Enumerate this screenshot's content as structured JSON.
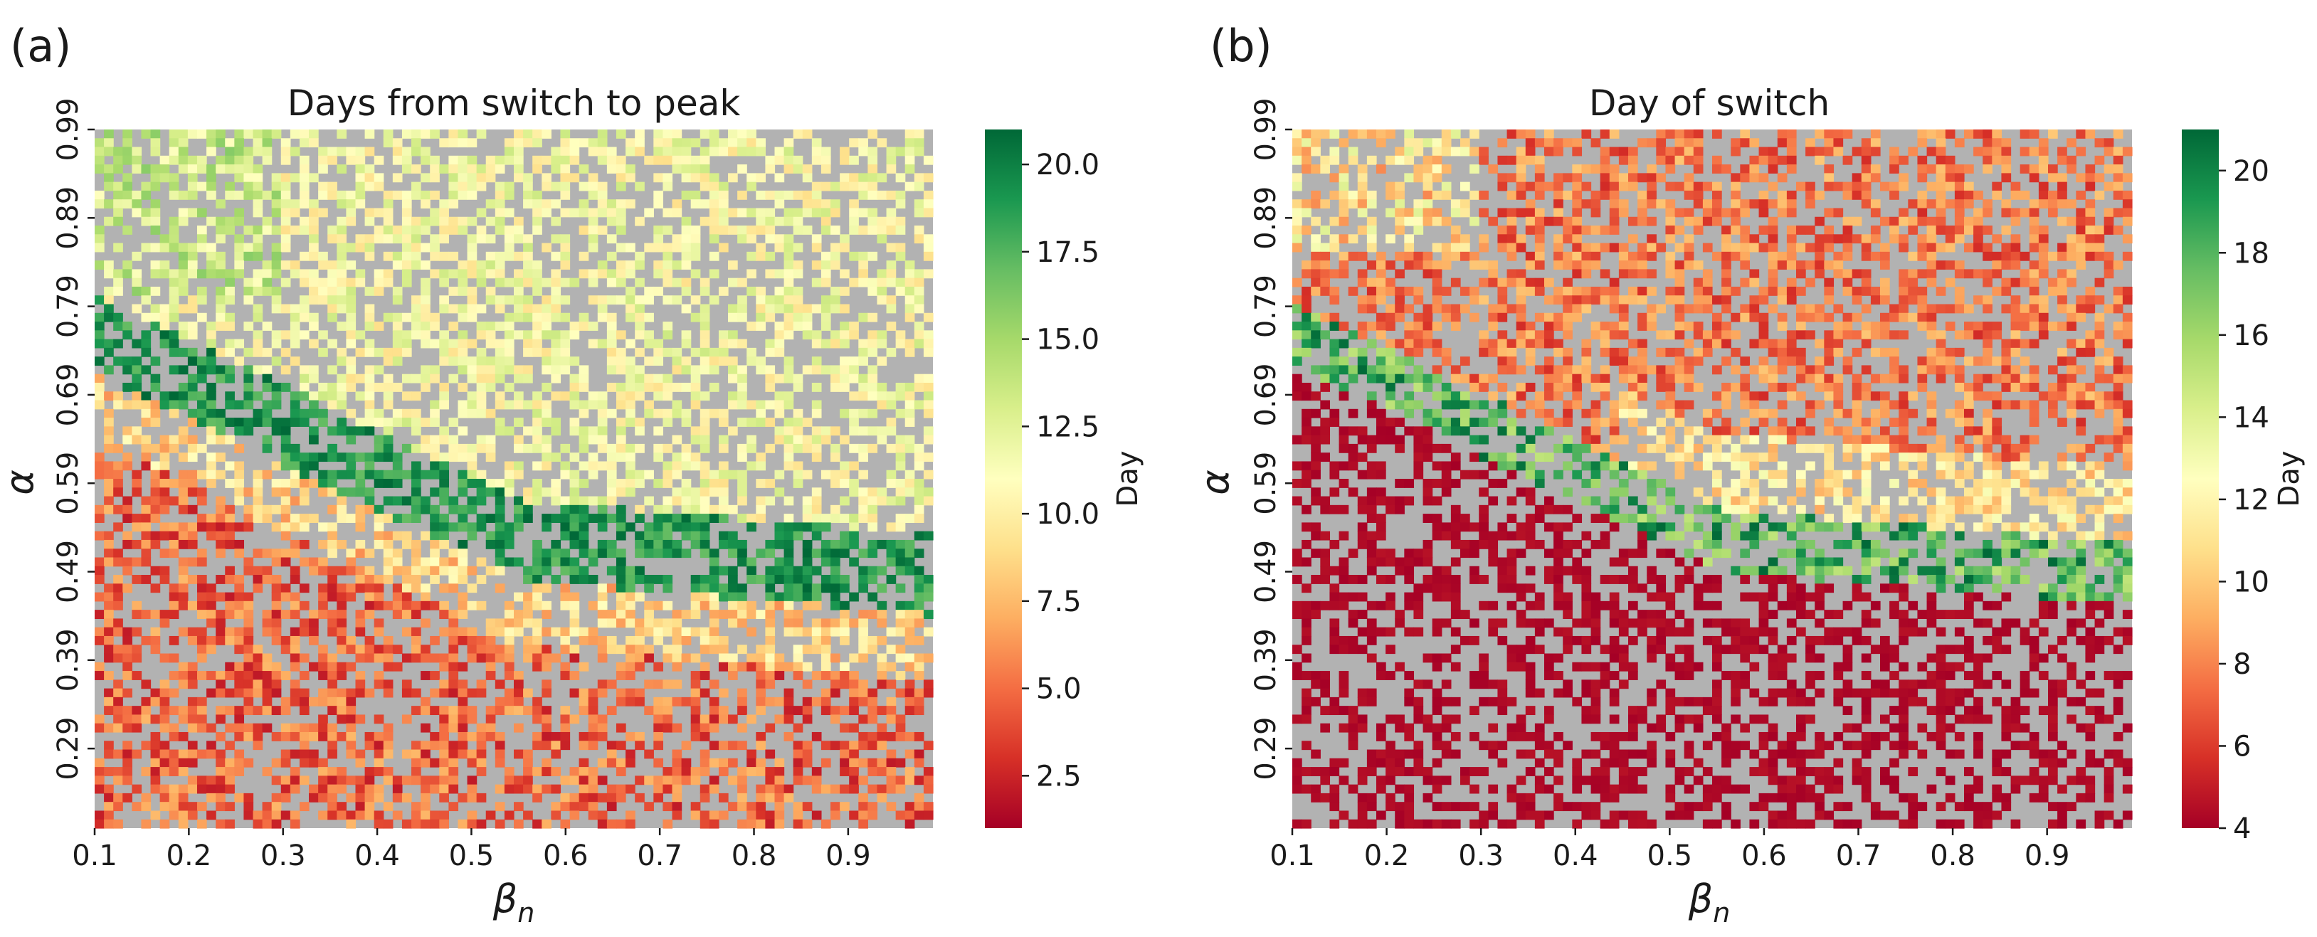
{
  "figure": {
    "panels": [
      "(a)",
      "(b)"
    ]
  },
  "chart_data": [
    {
      "type": "heatmap",
      "panel": "(a)",
      "title": "Days from switch to peak",
      "xlabel": "β",
      "xlabel_sub": "n",
      "ylabel": "α",
      "x_range": [
        0.1,
        0.99
      ],
      "y_range": [
        0.2,
        0.99
      ],
      "x_ticks": [
        "0.1",
        "0.2",
        "0.3",
        "0.4",
        "0.5",
        "0.6",
        "0.7",
        "0.8",
        "0.9"
      ],
      "y_ticks": [
        "0.99",
        "0.89",
        "0.79",
        "0.69",
        "0.59",
        "0.49",
        "0.39",
        "0.29"
      ],
      "colorbar": {
        "label": "Day",
        "min": 1,
        "max": 21,
        "ticks": [
          "2.5",
          "5.0",
          "7.5",
          "10.0",
          "12.5",
          "15.0",
          "17.5",
          "20.0"
        ],
        "tick_values": [
          2.5,
          5.0,
          7.5,
          10.0,
          12.5,
          15.0,
          17.5,
          20.0
        ],
        "colormap": "RdYlGn"
      },
      "missing_color": "#b2b2b2",
      "description": "Grid of 90 x 80 cells; green band (17-21 days) runs diagonally from alpha~0.75 at beta 0.1 to alpha~0.48 at beta 0.99; pale yellow (9-14) above; orange/red (2-7) below."
    },
    {
      "type": "heatmap",
      "panel": "(b)",
      "title": "Day of switch",
      "xlabel": "β",
      "xlabel_sub": "n",
      "ylabel": "α",
      "x_range": [
        0.1,
        0.99
      ],
      "y_range": [
        0.2,
        0.99
      ],
      "x_ticks": [
        "0.1",
        "0.2",
        "0.3",
        "0.4",
        "0.5",
        "0.6",
        "0.7",
        "0.8",
        "0.9"
      ],
      "y_ticks": [
        "0.99",
        "0.89",
        "0.79",
        "0.69",
        "0.59",
        "0.49",
        "0.39",
        "0.29"
      ],
      "colorbar": {
        "label": "Day",
        "min": 4,
        "max": 21,
        "ticks": [
          "4",
          "6",
          "8",
          "10",
          "12",
          "14",
          "16",
          "18",
          "20"
        ],
        "tick_values": [
          4,
          6,
          8,
          10,
          12,
          14,
          16,
          18,
          20
        ],
        "colormap": "RdYlGn"
      },
      "missing_color": "#b2b2b2",
      "description": "Grid of 90 x 80 cells; below the diagonal boundary nearly all cells are day 4 (dark red); a green band (16-21) follows the boundary; above it values are orange (6-10) with pale cells near the top-left."
    }
  ]
}
